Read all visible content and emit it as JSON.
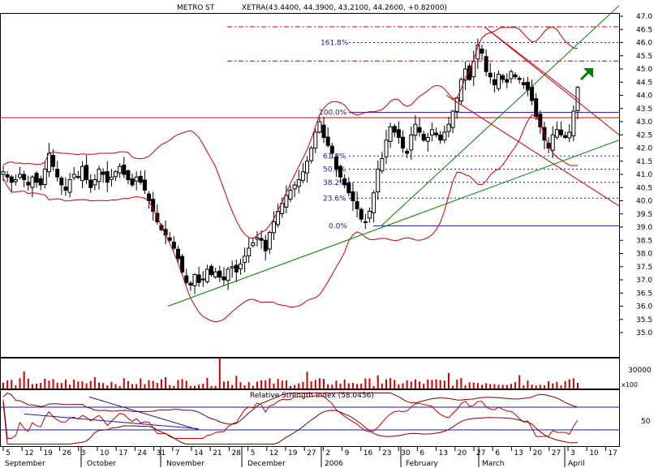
{
  "header": {
    "symbol": "METRO ST",
    "quote": "XETRA(43.4400, 44.3900, 43.2100, 44.2600, +0.82000)"
  },
  "chart_data": [
    {
      "type": "candlestick",
      "x_axis": {
        "day_labels": [
          "5",
          "12",
          "19",
          "26",
          "3",
          "10",
          "17",
          "24",
          "31",
          "7",
          "14",
          "21",
          "28",
          "5",
          "12",
          "19",
          "27",
          "2",
          "9",
          "16",
          "23",
          "30",
          "6",
          "13",
          "20",
          "27",
          "6",
          "13",
          "20",
          "27",
          "3",
          "10",
          "17"
        ],
        "month_labels": [
          "September",
          "October",
          "November",
          "December",
          "2006",
          "February",
          "March",
          "April"
        ]
      },
      "y_axis": {
        "ticks": [
          "47.0",
          "46.5",
          "46.0",
          "45.5",
          "45.0",
          "44.5",
          "44.0",
          "43.5",
          "43.0",
          "42.5",
          "42.0",
          "41.5",
          "41.0",
          "40.5",
          "40.0",
          "39.5",
          "39.0",
          "38.5",
          "38.0",
          "37.5",
          "37.0",
          "36.5",
          "36.0",
          "35.5",
          "35.0"
        ],
        "range": [
          34.6,
          47.4
        ]
      },
      "close_series_approx": [
        41.1,
        40.9,
        40.7,
        40.8,
        41.0,
        40.8,
        40.6,
        40.9,
        40.7,
        40.6,
        41.2,
        41.8,
        41.3,
        40.9,
        40.6,
        40.4,
        40.8,
        41.0,
        40.9,
        41.3,
        40.8,
        40.5,
        40.8,
        41.2,
        41.0,
        40.7,
        40.9,
        41.1,
        41.3,
        41.0,
        40.8,
        40.6,
        40.9,
        40.7,
        40.4,
        40.0,
        39.6,
        39.2,
        38.9,
        38.7,
        38.5,
        38.2,
        37.8,
        37.3,
        36.9,
        36.8,
        37.2,
        36.9,
        37.0,
        37.4,
        37.2,
        37.3,
        37.1,
        37.0,
        37.4,
        37.5,
        37.3,
        37.6,
        37.9,
        38.2,
        38.4,
        38.6,
        38.5,
        38.1,
        38.8,
        39.2,
        39.6,
        39.9,
        40.2,
        40.4,
        40.6,
        40.8,
        41.1,
        41.5,
        42.0,
        42.6,
        43.0,
        42.4,
        42.1,
        41.8,
        41.2,
        40.9,
        40.6,
        40.3,
        40.0,
        39.7,
        39.3,
        39.2,
        39.6,
        40.3,
        41.2,
        41.6,
        42.3,
        42.8,
        42.6,
        42.4,
        42.0,
        41.8,
        42.5,
        42.9,
        42.6,
        42.3,
        42.4,
        42.7,
        42.5,
        42.3,
        42.6,
        42.9,
        43.4,
        43.9,
        44.6,
        45.0,
        44.6,
        45.3,
        45.9,
        45.6,
        44.9,
        44.7,
        44.4,
        44.8,
        44.6,
        44.5,
        44.9,
        44.7,
        44.6,
        44.4,
        44.2,
        43.8,
        43.2,
        42.8,
        42.3,
        42.0,
        42.5,
        42.7,
        42.5,
        42.4,
        42.6,
        43.4,
        44.3
      ],
      "indicators": [
        "Bollinger Bands",
        "Fibonacci Retracement: 0.0%, 23.6%, 38.2%, 50.0%, 61.8%, 100.0%, 161.8%",
        "Trend lines",
        "Volume",
        "Relative Strength Index"
      ],
      "fibonacci_levels": [
        {
          "label": "161.8%",
          "value": 46.0
        },
        {
          "label": "100.0%",
          "value": 43.35
        },
        {
          "label": "61.8%",
          "value": 41.7
        },
        {
          "label": "50.0%",
          "value": 41.2
        },
        {
          "label": "38.2%",
          "value": 40.7
        },
        {
          "label": "23.6%",
          "value": 40.1
        },
        {
          "label": "0.0%",
          "value": 39.05
        }
      ],
      "horizontal_lines": [
        46.6,
        45.3,
        43.15
      ],
      "colors": {
        "candles": "#000000",
        "bands": "#cc0000",
        "fib": "#1a1aa0",
        "trend": "#008000",
        "arrow": "#008000",
        "grid": "#808080"
      }
    },
    {
      "type": "bar",
      "title": "Volume",
      "y_axis": {
        "ticks": [
          "30000"
        ],
        "multiplier_label": "x100"
      }
    },
    {
      "type": "line",
      "title": "Relative Strength Index (58.0456)",
      "y_axis": {
        "ticks": [
          "50"
        ]
      }
    }
  ]
}
